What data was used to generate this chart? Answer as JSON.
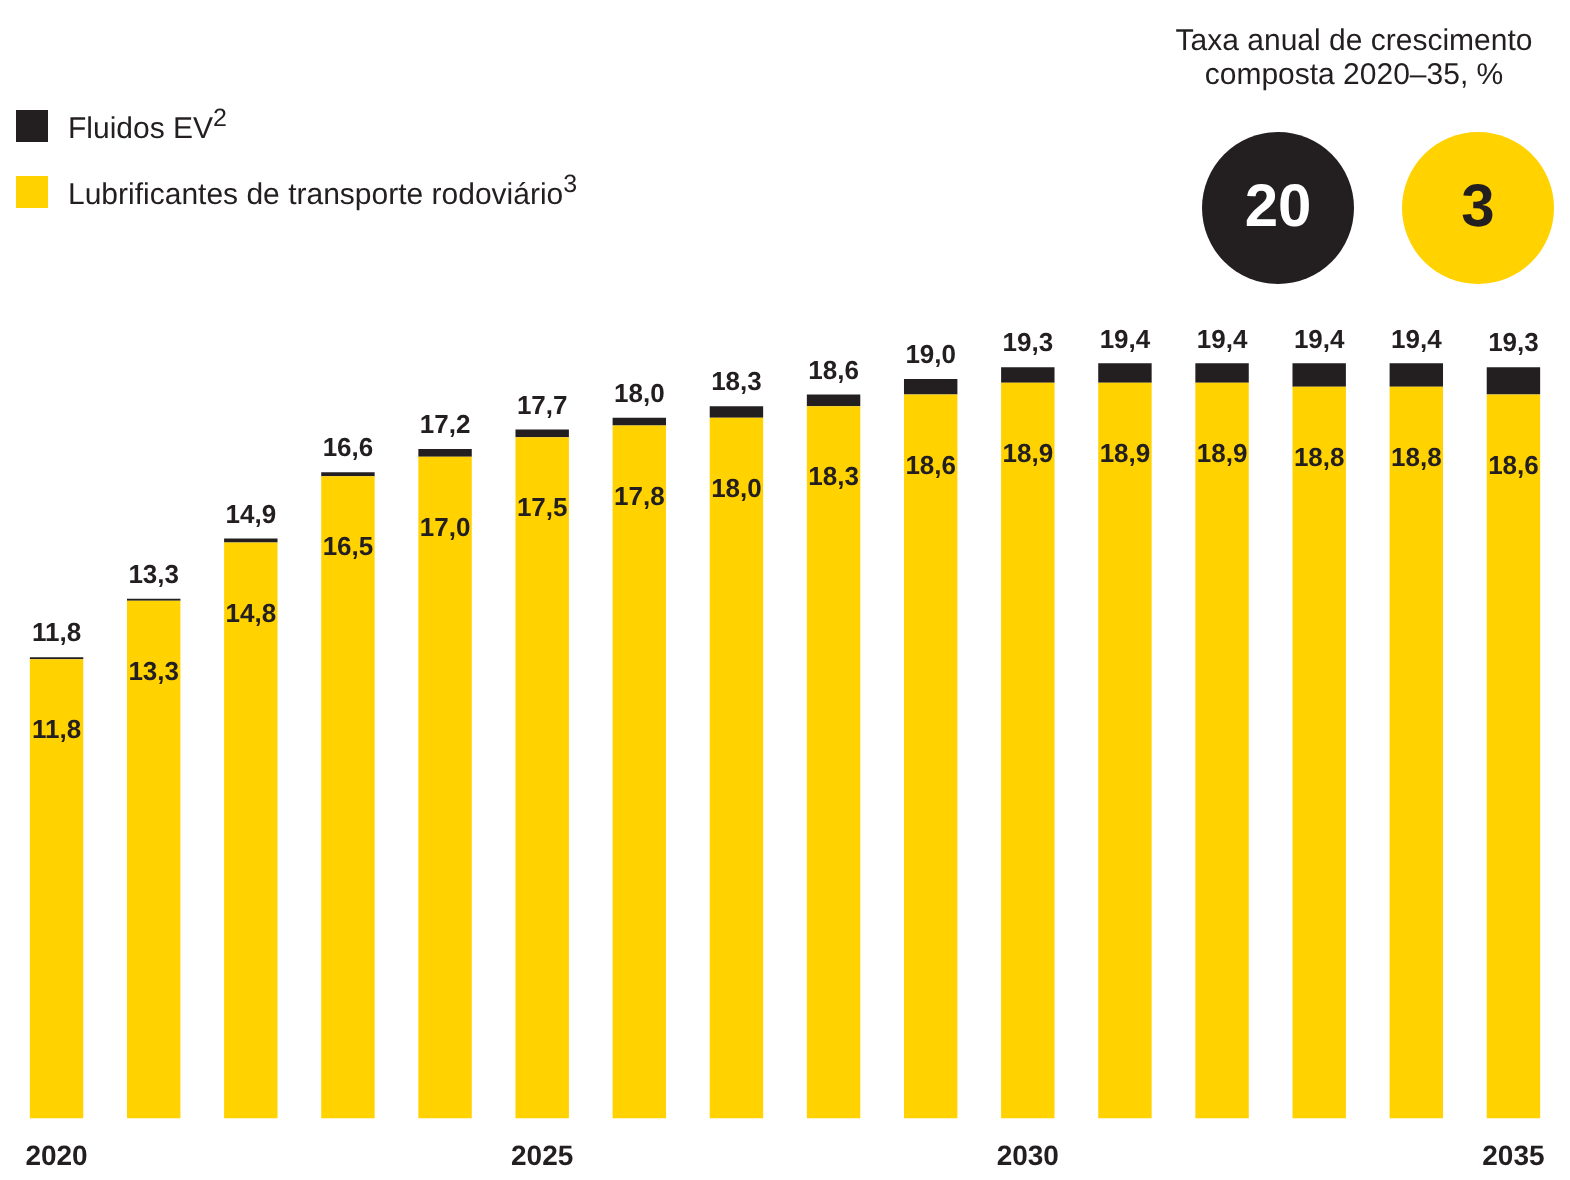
{
  "chart_data": {
    "type": "bar",
    "stacked": true,
    "legend": "top left",
    "categories": [
      "2020",
      null,
      null,
      null,
      null,
      "2025",
      null,
      null,
      null,
      null,
      "2030",
      null,
      null,
      null,
      null,
      "2035"
    ],
    "series": [
      {
        "name": "Lubrificantes de transporte rodoviário$^{3}$",
        "color": "#ffd200",
        "values": [
          11.8,
          13.3,
          14.8,
          16.5,
          17.0,
          17.5,
          17.8,
          18.0,
          18.3,
          18.6,
          18.9,
          18.9,
          18.9,
          18.8,
          18.8,
          18.6
        ],
        "value_labels": [
          "11,8",
          "13,3",
          "14,8",
          "16,5",
          "17,0",
          "17,5",
          "17,8",
          "18,0",
          "18,3",
          "18,6",
          "18,9",
          "18,9",
          "18,9",
          "18,8",
          "18,8",
          "18,6"
        ]
      },
      {
        "name": "Fluidos EV$^{2}$",
        "color": "#231f20",
        "values": [
          0.05,
          0.05,
          0.1,
          0.1,
          0.2,
          0.2,
          0.2,
          0.3,
          0.3,
          0.4,
          0.4,
          0.5,
          0.5,
          0.6,
          0.6,
          0.7
        ]
      }
    ],
    "totals": [
      "11,8",
      "13,3",
      "14,9",
      "16,6",
      "17,2",
      "17,7",
      "18,0",
      "18,3",
      "18,6",
      "19,0",
      "19,3",
      "19,4",
      "19,4",
      "19,4",
      "19,4",
      "19,3"
    ],
    "annotations": [
      "Taxa anual de crescimento composta 2020–35, %",
      "20",
      "3"
    ]
  }
}
